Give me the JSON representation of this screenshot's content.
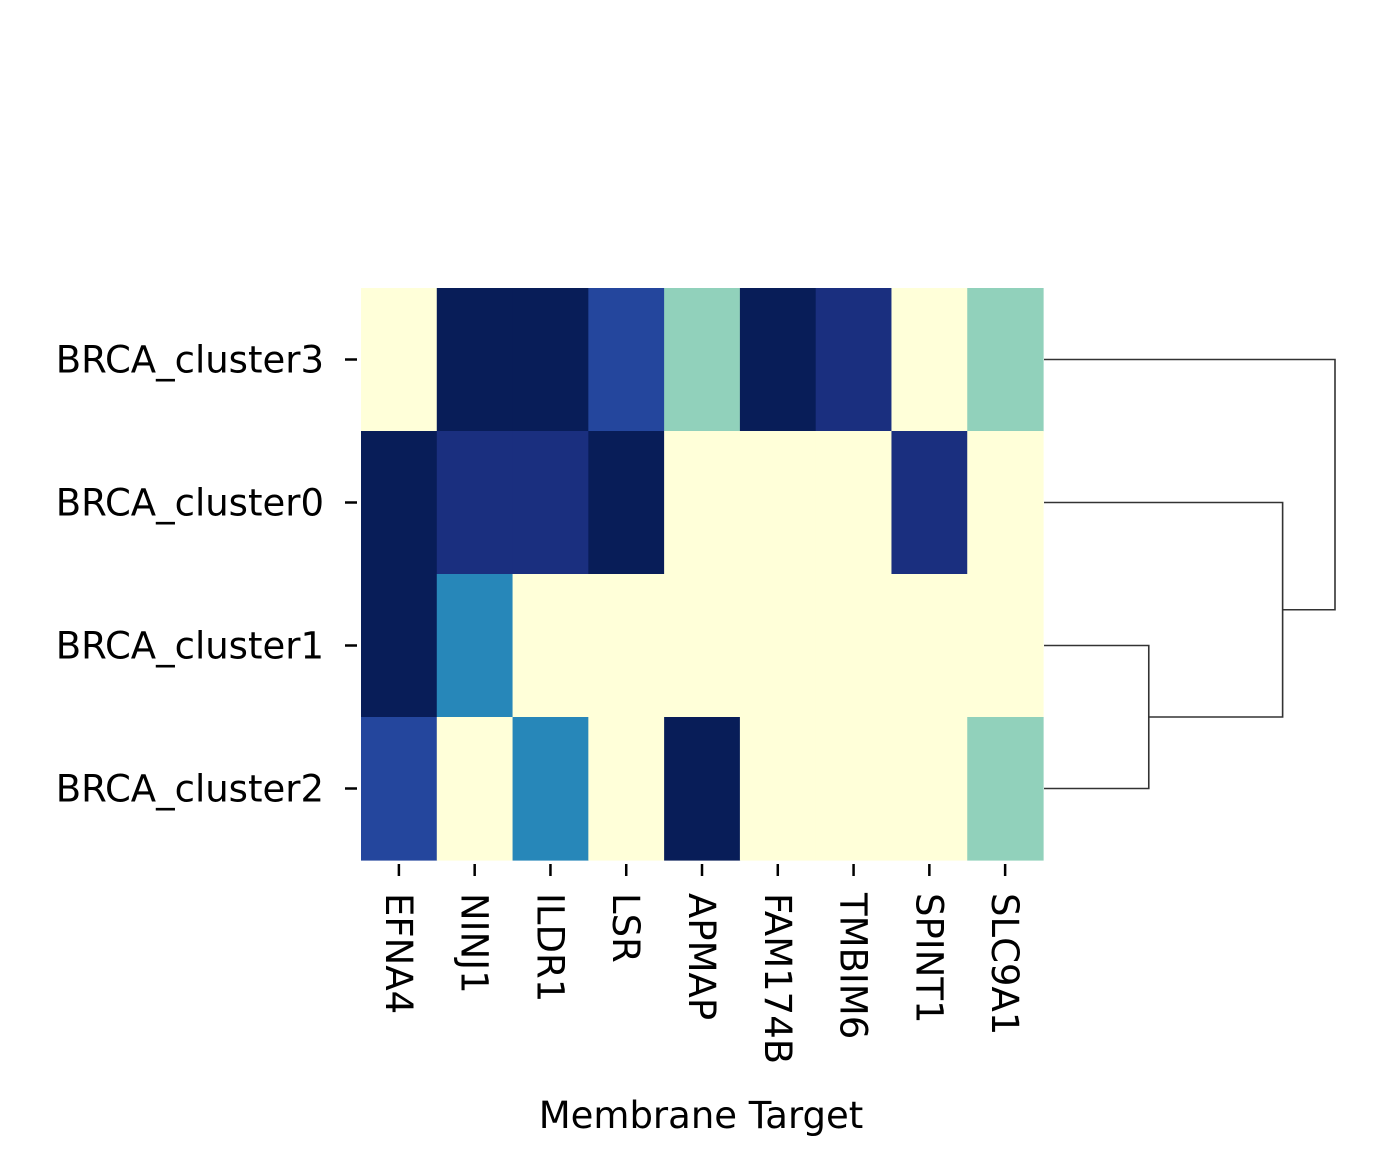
{
  "chart_data": {
    "type": "heatmap",
    "title": "",
    "xlabel": "Membrane Target",
    "ylabel": "",
    "colormap": "YlGnBu",
    "colorbar": false,
    "rows": [
      "BRCA_cluster3",
      "BRCA_cluster0",
      "BRCA_cluster1",
      "BRCA_cluster2"
    ],
    "columns": [
      "EFNA4",
      "NINJ1",
      "ILDR1",
      "LSR",
      "APMAP",
      "FAM174B",
      "TMBIM6",
      "SPINT1",
      "SLC9A1"
    ],
    "values": [
      [
        0,
        4,
        4,
        3,
        1,
        4,
        3.5,
        0,
        1
      ],
      [
        4,
        3.5,
        3.5,
        4,
        0,
        0,
        0,
        3.5,
        0
      ],
      [
        4,
        2,
        0,
        0,
        0,
        0,
        0,
        0,
        0
      ],
      [
        3,
        0,
        2,
        0,
        4,
        0,
        0,
        0,
        1
      ]
    ],
    "value_range": [
      0,
      4
    ],
    "color_scale": [
      "#ffffd9",
      "#b2e1b9",
      "#2ca1c2",
      "#216daf",
      "#253997",
      "#081d58"
    ],
    "dendrogram": {
      "side": "right",
      "merges": [
        {
          "left": "BRCA_cluster1",
          "right": "BRCA_cluster2",
          "height": 0.36
        },
        {
          "left": "BRCA_cluster0",
          "right": "merge-0",
          "height": 0.82
        },
        {
          "left": "BRCA_cluster3",
          "right": "merge-1",
          "height": 1.0
        }
      ],
      "line_color": "#333333"
    }
  }
}
